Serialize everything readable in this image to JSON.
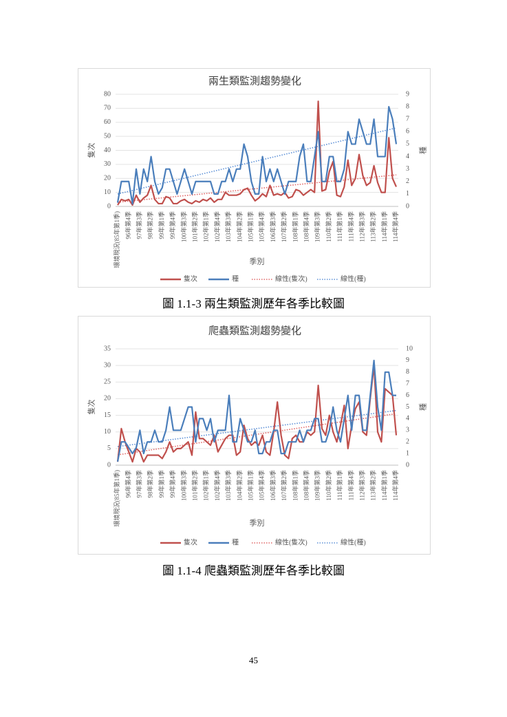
{
  "chart_data": [
    {
      "type": "line",
      "title": "兩生類監測趨勢變化",
      "x_label": "季別",
      "y_label": "隻次",
      "y2_label": "種",
      "categories": [
        "環境現況(85年第1季)",
        null,
        null,
        "96年第4季",
        null,
        null,
        "97年第3季",
        null,
        null,
        "98年第2季",
        null,
        null,
        "99年第1季",
        null,
        null,
        "99年第4季",
        null,
        null,
        "100年第3季",
        null,
        null,
        "101年第2季",
        null,
        null,
        "102年第1季",
        null,
        null,
        "102年第4季",
        null,
        null,
        "103年第3季",
        null,
        null,
        "104年第2季",
        null,
        null,
        "105年第1季",
        null,
        null,
        "105年第4季",
        null,
        null,
        "106年第3季",
        null,
        null,
        "107年第2季",
        null,
        null,
        "108年第1季",
        null,
        null,
        "108年第4季",
        null,
        null,
        "109年第3季",
        null,
        null,
        "110年第2季",
        null,
        null,
        "111年第1季",
        null,
        null,
        "111年第4季",
        null,
        null,
        "112年第3季",
        null,
        null,
        "113年第2季",
        null,
        null,
        "114年第1季",
        null,
        null,
        "114年第4季"
      ],
      "series": [
        {
          "name": "隻次",
          "color": "#c0504d",
          "values": [
            1,
            5,
            4,
            5,
            1,
            8,
            3,
            6,
            8,
            15,
            5,
            2,
            2,
            7,
            6,
            2,
            2,
            4,
            5,
            3,
            2,
            4,
            3,
            5,
            4,
            6,
            3,
            5,
            5,
            10,
            8,
            8,
            8,
            9,
            12,
            13,
            8,
            4,
            6,
            9,
            7,
            15,
            8,
            9,
            8,
            10,
            6,
            7,
            12,
            11,
            8,
            10,
            12,
            10,
            75,
            11,
            12,
            25,
            32,
            8,
            7,
            14,
            33,
            15,
            20,
            37,
            22,
            15,
            17,
            29,
            17,
            10,
            10,
            49,
            20,
            14
          ]
        },
        {
          "name": "種",
          "color": "#4a7ebb",
          "axis": "y2",
          "values": [
            0.3,
            2,
            2,
            2,
            0.2,
            3,
            1,
            3,
            2,
            4,
            2,
            1,
            1.5,
            3,
            3,
            2,
            1,
            2,
            3,
            2,
            1,
            2,
            2,
            2,
            2,
            2,
            1,
            1,
            2,
            2,
            3,
            2,
            3,
            3,
            5,
            4,
            2,
            1,
            1,
            4,
            2,
            3,
            2,
            3,
            2,
            1,
            2,
            2,
            2,
            4,
            5,
            2,
            2,
            4,
            6,
            2,
            2,
            4,
            4,
            2,
            2,
            3,
            6,
            5,
            5,
            7,
            6,
            5,
            5,
            7,
            4,
            4,
            4,
            8,
            7,
            5
          ]
        }
      ],
      "trendlines": [
        {
          "name": "線性(隻次)",
          "color": "#e06666",
          "ends": [
            3,
            22.5
          ]
        },
        {
          "name": "線性(種)",
          "color": "#5b8fd6",
          "axis": "y2",
          "ends": [
            1,
            6.3
          ]
        }
      ],
      "ylim": [
        0,
        80
      ],
      "yticks": [
        0,
        10,
        20,
        30,
        40,
        50,
        60,
        70,
        80
      ],
      "y2lim": [
        0,
        9
      ],
      "y2ticks": [
        0,
        1,
        2,
        3,
        4,
        5,
        6,
        7,
        8,
        9
      ],
      "grid": true,
      "legend": "bottom"
    },
    {
      "type": "line",
      "title": "爬蟲類監測趨勢變化",
      "x_label": "季別",
      "y_label": "隻次",
      "y2_label": "種",
      "categories": [
        "環境現況(85年第1季)",
        null,
        null,
        "96年第4季",
        null,
        null,
        "97年第3季",
        null,
        null,
        "98年第2季",
        null,
        null,
        "99年第1季",
        null,
        null,
        "99年第4季",
        null,
        null,
        "100年第3季",
        null,
        null,
        "101年第2季",
        null,
        null,
        "102年第1季",
        null,
        null,
        "102年第4季",
        null,
        null,
        "103年第3季",
        null,
        null,
        "104年第2季",
        null,
        null,
        "105年第1季",
        null,
        null,
        "105年第4季",
        null,
        null,
        "106年第3季",
        null,
        null,
        "107年第2季",
        null,
        null,
        "108年第1季",
        null,
        null,
        "108年第4季",
        null,
        null,
        "109年第3季",
        null,
        null,
        "110年第2季",
        null,
        null,
        "111年第1季",
        null,
        null,
        "111年第4季",
        null,
        null,
        "112年第3季",
        null,
        null,
        "113年第2季",
        null,
        null,
        "114年第1季",
        null,
        null,
        "114年第4季"
      ],
      "series": [
        {
          "name": "隻次",
          "color": "#c0504d",
          "values": [
            1,
            11,
            7,
            4,
            1,
            5,
            4,
            1,
            3,
            3,
            3,
            3,
            2,
            4,
            7,
            4,
            5,
            5,
            6,
            7,
            3,
            16,
            8,
            8,
            7,
            6,
            9,
            4,
            6,
            8,
            9,
            9,
            3,
            4,
            12,
            8,
            6,
            7,
            6,
            9,
            4,
            3,
            10,
            19,
            9,
            3,
            2,
            8,
            9,
            7,
            7,
            10,
            9,
            10,
            24,
            11,
            9,
            15,
            10,
            7,
            12,
            18,
            5,
            12,
            17,
            19,
            10,
            9,
            20,
            30,
            10,
            7,
            23,
            22,
            21,
            9
          ]
        },
        {
          "name": "種",
          "color": "#4a7ebb",
          "axis": "y2",
          "values": [
            0.3,
            2,
            2,
            1.5,
            1,
            1.5,
            3,
            1,
            2,
            2,
            3,
            2,
            2,
            3,
            5,
            3,
            3,
            3,
            4,
            5,
            5,
            2,
            4,
            4,
            3,
            4,
            2,
            3,
            3,
            3,
            6,
            2,
            2,
            4,
            3,
            2,
            2,
            3,
            1,
            1,
            2,
            2,
            3,
            3,
            1,
            1,
            2,
            2,
            2,
            3,
            2,
            3,
            3,
            4,
            4,
            2,
            2,
            3,
            5,
            3,
            2,
            4,
            6,
            3,
            6,
            6,
            3,
            3,
            6,
            9,
            5,
            3,
            8,
            8,
            6,
            6
          ]
        }
      ],
      "trendlines": [
        {
          "name": "線性(隻次)",
          "color": "#e06666",
          "ends": [
            3.1,
            15.5
          ]
        },
        {
          "name": "線性(種)",
          "color": "#5b8fd6",
          "axis": "y2",
          "ends": [
            1.6,
            4.7
          ]
        }
      ],
      "ylim": [
        0,
        35
      ],
      "yticks": [
        0,
        5,
        10,
        15,
        20,
        25,
        30,
        35
      ],
      "y2lim": [
        0,
        10
      ],
      "y2ticks": [
        0,
        1,
        2,
        3,
        4,
        5,
        6,
        7,
        8,
        9,
        10
      ],
      "grid": true,
      "legend": "bottom"
    }
  ],
  "captions": [
    "圖 1.1-3 兩生類監測歷年各季比較圖",
    "圖 1.1-4 爬蟲類監測歷年各季比較圖"
  ],
  "page_number": "45"
}
